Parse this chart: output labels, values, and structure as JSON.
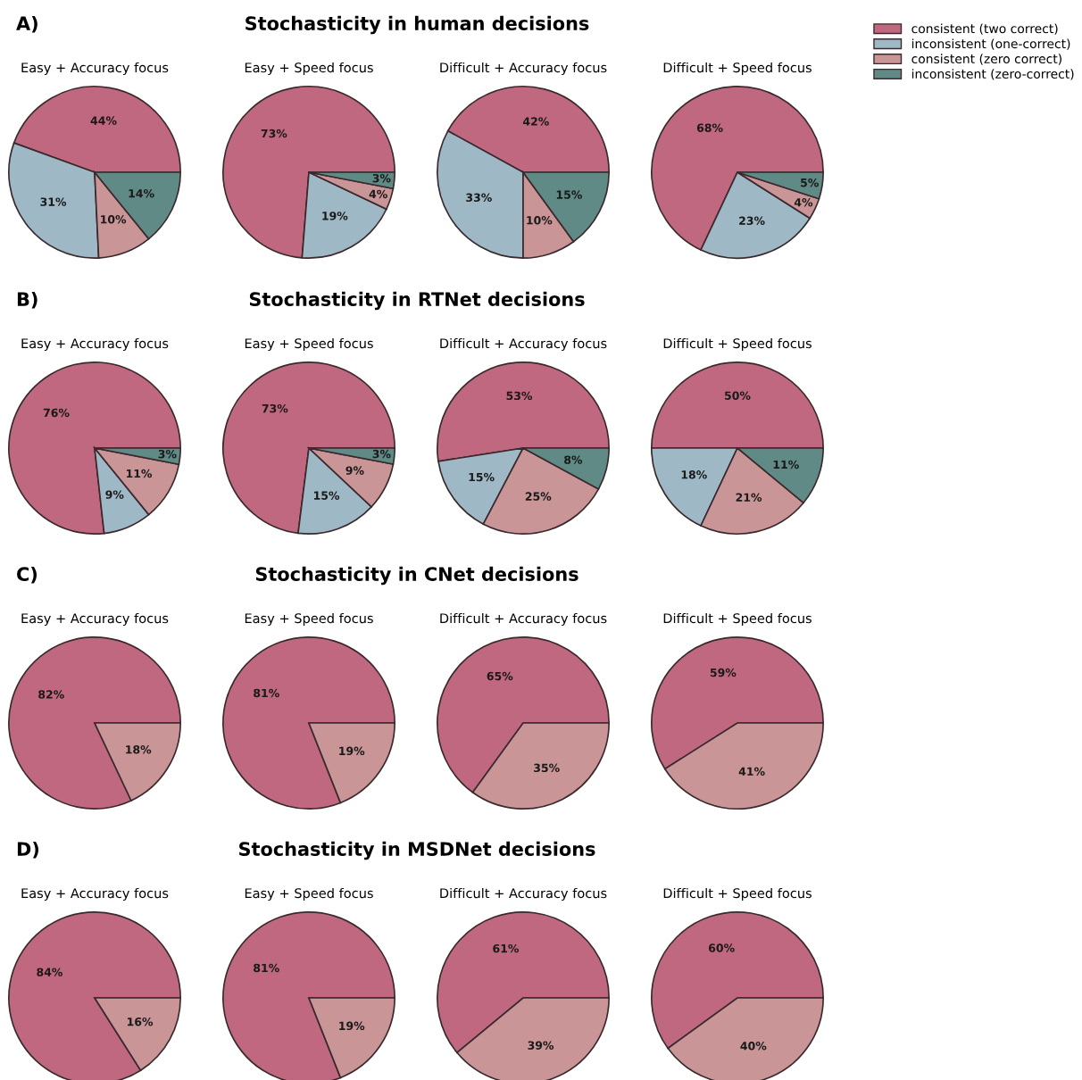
{
  "chart_data": [
    {
      "type": "pie",
      "title": "Easy + Accuracy focus",
      "annotations": [
        "A)",
        "Stochasticity in human decisions"
      ],
      "legend": "top right",
      "categories": [
        "consistent (two correct)",
        "inconsistent (one-correct)",
        "consistent (zero correct)",
        "inconsistent (zero-correct)"
      ],
      "colors": [
        "#c0687f",
        "#9fb8c6",
        "#c99597",
        "#5f8a86"
      ],
      "values": [
        44,
        31,
        10,
        14
      ],
      "value_labels": [
        "44%",
        "31%",
        "10%",
        "14%"
      ]
    },
    {
      "type": "pie",
      "title": "Easy + Speed focus",
      "colors": [
        "#c0687f",
        "#9fb8c6",
        "#c99597",
        "#5f8a86"
      ],
      "values": [
        73,
        19,
        4,
        3
      ],
      "value_labels": [
        "73%",
        "19%",
        "4%",
        "3%"
      ]
    },
    {
      "type": "pie",
      "title": "Difficult + Accuracy focus",
      "colors": [
        "#c0687f",
        "#9fb8c6",
        "#c99597",
        "#5f8a86"
      ],
      "values": [
        42,
        33,
        10,
        15
      ],
      "value_labels": [
        "42%",
        "33%",
        "10%",
        "15%"
      ]
    },
    {
      "type": "pie",
      "title": "Difficult + Speed focus",
      "colors": [
        "#c0687f",
        "#9fb8c6",
        "#c99597",
        "#5f8a86"
      ],
      "values": [
        68,
        23,
        4,
        5
      ],
      "value_labels": [
        "68%",
        "23%",
        "4%",
        "5%"
      ]
    },
    {
      "type": "pie",
      "title": "Easy + Accuracy focus",
      "annotations": [
        "B)",
        "Stochasticity in RTNet decisions"
      ],
      "colors": [
        "#c0687f",
        "#9fb8c6",
        "#c99597",
        "#5f8a86"
      ],
      "values": [
        76,
        9,
        11,
        3
      ],
      "value_labels": [
        "76%",
        "9%",
        "11%",
        "3%"
      ]
    },
    {
      "type": "pie",
      "title": "Easy + Speed focus",
      "colors": [
        "#c0687f",
        "#9fb8c6",
        "#c99597",
        "#5f8a86"
      ],
      "values": [
        73,
        15,
        9,
        3
      ],
      "value_labels": [
        "73%",
        "15%",
        "9%",
        "3%"
      ]
    },
    {
      "type": "pie",
      "title": "Difficult + Accuracy focus",
      "colors": [
        "#c0687f",
        "#9fb8c6",
        "#c99597",
        "#5f8a86"
      ],
      "values": [
        53,
        15,
        25,
        8
      ],
      "value_labels": [
        "53%",
        "15%",
        "25%",
        "8%"
      ]
    },
    {
      "type": "pie",
      "title": "Difficult + Speed focus",
      "colors": [
        "#c0687f",
        "#9fb8c6",
        "#c99597",
        "#5f8a86"
      ],
      "values": [
        50,
        18,
        21,
        11
      ],
      "value_labels": [
        "50%",
        "18%",
        "21%",
        "11%"
      ]
    },
    {
      "type": "pie",
      "title": "Easy + Accuracy focus",
      "annotations": [
        "C)",
        "Stochasticity in CNet decisions"
      ],
      "colors": [
        "#c0687f",
        "#9fb8c6",
        "#c99597",
        "#5f8a86"
      ],
      "values": [
        82,
        null,
        18,
        null
      ],
      "value_labels": [
        "82%",
        null,
        "18%",
        null
      ]
    },
    {
      "type": "pie",
      "title": "Easy + Speed focus",
      "colors": [
        "#c0687f",
        "#9fb8c6",
        "#c99597",
        "#5f8a86"
      ],
      "values": [
        81,
        null,
        19,
        null
      ],
      "value_labels": [
        "81%",
        null,
        "19%",
        null
      ]
    },
    {
      "type": "pie",
      "title": "Difficult + Accuracy focus",
      "colors": [
        "#c0687f",
        "#9fb8c6",
        "#c99597",
        "#5f8a86"
      ],
      "values": [
        65,
        null,
        35,
        null
      ],
      "value_labels": [
        "65%",
        null,
        "35%",
        null
      ]
    },
    {
      "type": "pie",
      "title": "Difficult + Speed focus",
      "colors": [
        "#c0687f",
        "#9fb8c6",
        "#c99597",
        "#5f8a86"
      ],
      "values": [
        59,
        null,
        41,
        null
      ],
      "value_labels": [
        "59%",
        null,
        "41%",
        null
      ]
    },
    {
      "type": "pie",
      "title": "Easy + Accuracy focus",
      "annotations": [
        "D)",
        "Stochasticity in MSDNet decisions"
      ],
      "colors": [
        "#c0687f",
        "#9fb8c6",
        "#c99597",
        "#5f8a86"
      ],
      "values": [
        84,
        null,
        16,
        null
      ],
      "value_labels": [
        "84%",
        null,
        "16%",
        null
      ]
    },
    {
      "type": "pie",
      "title": "Easy + Speed focus",
      "colors": [
        "#c0687f",
        "#9fb8c6",
        "#c99597",
        "#5f8a86"
      ],
      "values": [
        81,
        null,
        19,
        null
      ],
      "value_labels": [
        "81%",
        null,
        "19%",
        null
      ]
    },
    {
      "type": "pie",
      "title": "Difficult + Accuracy focus",
      "colors": [
        "#c0687f",
        "#9fb8c6",
        "#c99597",
        "#5f8a86"
      ],
      "values": [
        61,
        null,
        39,
        null
      ],
      "value_labels": [
        "61%",
        null,
        "39%",
        null
      ]
    },
    {
      "type": "pie",
      "title": "Difficult + Speed focus",
      "colors": [
        "#c0687f",
        "#9fb8c6",
        "#c99597",
        "#5f8a86"
      ],
      "values": [
        60,
        null,
        40,
        null
      ],
      "value_labels": [
        "60%",
        null,
        "40%",
        null
      ]
    }
  ]
}
